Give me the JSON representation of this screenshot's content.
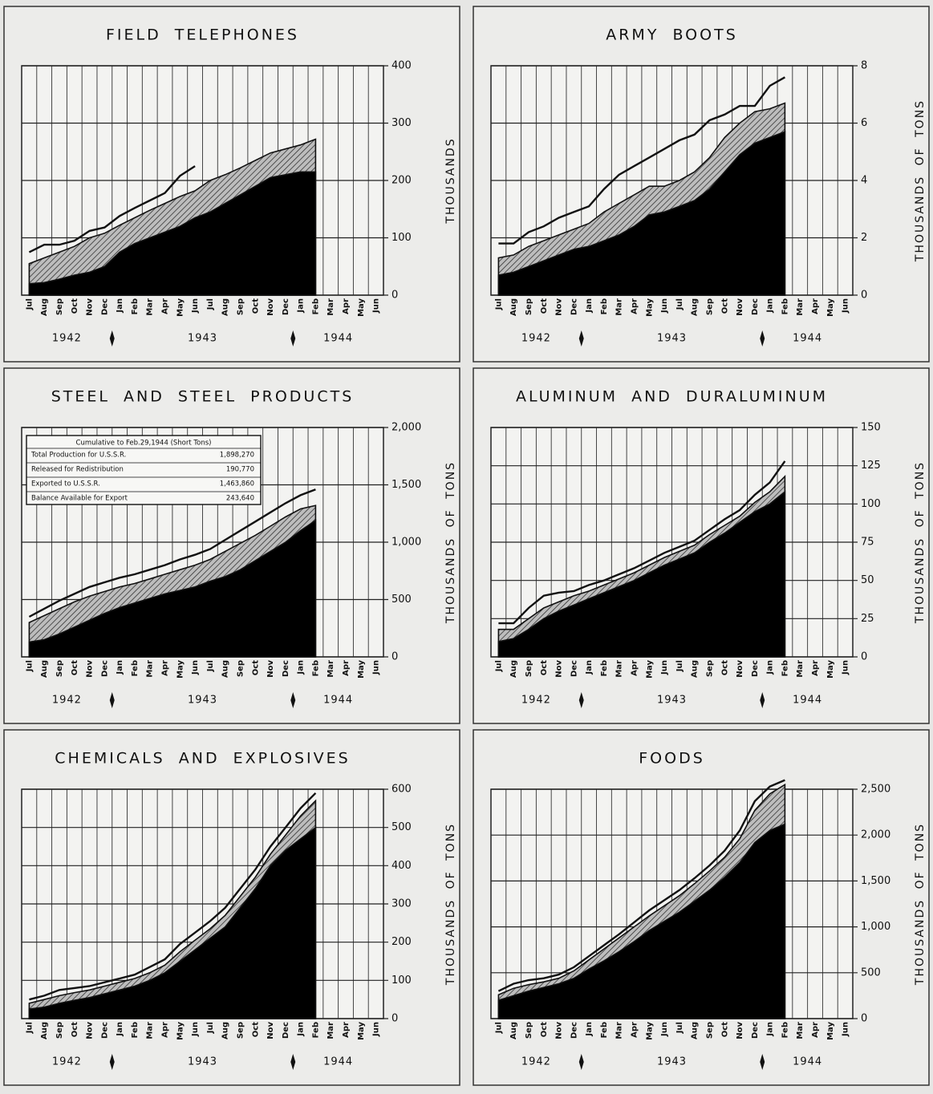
{
  "chart_data": [
    {
      "type": "line",
      "title": "FIELD TELEPHONES",
      "y_label": "THOUSANDS",
      "categories": [
        "Jul",
        "Aug",
        "Sep",
        "Oct",
        "Nov",
        "Dec",
        "Jan",
        "Feb",
        "Mar",
        "Apr",
        "May",
        "Jun",
        "Jul",
        "Aug",
        "Sep",
        "Oct",
        "Nov",
        "Dec",
        "Jan",
        "Feb",
        "Mar",
        "Apr",
        "May",
        "Jun"
      ],
      "years": [
        "1942",
        "1943",
        "1944"
      ],
      "ylim": [
        0,
        400
      ],
      "yticks": [
        0,
        100,
        200,
        300,
        400
      ],
      "grid": true,
      "series": [
        {
          "color": "#111111",
          "values": [
            75,
            88,
            88,
            95,
            112,
            118,
            138,
            152,
            165,
            178,
            208,
            225,
            null,
            null,
            null,
            null,
            null,
            null,
            null,
            null,
            null,
            null,
            null,
            null
          ]
        },
        {
          "color": "#9a9a9a",
          "values": [
            55,
            65,
            75,
            85,
            100,
            108,
            122,
            135,
            148,
            160,
            172,
            182,
            200,
            210,
            222,
            235,
            248,
            255,
            262,
            272,
            null,
            null,
            null,
            null
          ]
        },
        {
          "color": "#000000",
          "values": [
            20,
            22,
            28,
            35,
            40,
            50,
            75,
            90,
            100,
            110,
            120,
            135,
            145,
            160,
            175,
            190,
            205,
            210,
            215,
            215,
            null,
            null,
            null,
            null
          ]
        }
      ]
    },
    {
      "type": "line",
      "title": "ARMY BOOTS",
      "y_label": "THOUSANDS OF TONS",
      "categories": [
        "Jul",
        "Aug",
        "Sep",
        "Oct",
        "Nov",
        "Dec",
        "Jan",
        "Feb",
        "Mar",
        "Apr",
        "May",
        "Jun",
        "Jul",
        "Aug",
        "Sep",
        "Oct",
        "Nov",
        "Dec",
        "Jan",
        "Feb",
        "Mar",
        "Apr",
        "May",
        "Jun"
      ],
      "years": [
        "1942",
        "1943",
        "1944"
      ],
      "ylim": [
        0,
        8
      ],
      "yticks": [
        0,
        2,
        4,
        6,
        8
      ],
      "grid": true,
      "series": [
        {
          "color": "#111111",
          "values": [
            1.8,
            1.8,
            2.2,
            2.4,
            2.7,
            2.9,
            3.1,
            3.7,
            4.2,
            4.5,
            4.8,
            5.1,
            5.4,
            5.6,
            6.1,
            6.3,
            6.6,
            6.6,
            7.3,
            7.6,
            null,
            null,
            null,
            null
          ]
        },
        {
          "color": "#9a9a9a",
          "values": [
            1.3,
            1.4,
            1.7,
            1.9,
            2.1,
            2.3,
            2.5,
            2.9,
            3.2,
            3.5,
            3.8,
            3.8,
            4.0,
            4.3,
            4.8,
            5.5,
            6.0,
            6.4,
            6.5,
            6.7,
            null,
            null,
            null,
            null
          ]
        },
        {
          "color": "#000000",
          "values": [
            0.7,
            0.8,
            1.0,
            1.2,
            1.4,
            1.6,
            1.7,
            1.9,
            2.1,
            2.4,
            2.8,
            2.9,
            3.1,
            3.3,
            3.7,
            4.3,
            4.9,
            5.3,
            5.5,
            5.7,
            null,
            null,
            null,
            null
          ]
        }
      ]
    },
    {
      "type": "line",
      "title": "STEEL AND STEEL PRODUCTS",
      "y_label": "THOUSANDS OF TONS",
      "categories": [
        "Jul",
        "Aug",
        "Sep",
        "Oct",
        "Nov",
        "Dec",
        "Jan",
        "Feb",
        "Mar",
        "Apr",
        "May",
        "Jun",
        "Jul",
        "Aug",
        "Sep",
        "Oct",
        "Nov",
        "Dec",
        "Jan",
        "Feb",
        "Mar",
        "Apr",
        "May",
        "Jun"
      ],
      "years": [
        "1942",
        "1943",
        "1944"
      ],
      "ylim": [
        0,
        2000
      ],
      "yticks": [
        0,
        500,
        {
          "value": 1000,
          "label": "1,000"
        },
        {
          "value": 1500,
          "label": "1,500"
        },
        {
          "value": 2000,
          "label": "2,000"
        }
      ],
      "grid": true,
      "table": {
        "title": "Cumulative to Feb.29,1944 (Short Tons)",
        "rows": [
          [
            "Total Production for U.S.S.R.",
            "1,898,270"
          ],
          [
            "Released for Redistribution",
            "190,770"
          ],
          [
            "Exported to U.S.S.R.",
            "1,463,860"
          ],
          [
            "Balance Available for Export",
            "243,640"
          ]
        ]
      },
      "series": [
        {
          "color": "#111111",
          "values": [
            350,
            420,
            490,
            550,
            610,
            650,
            690,
            720,
            760,
            800,
            850,
            890,
            940,
            1020,
            1100,
            1180,
            1260,
            1340,
            1410,
            1460,
            null,
            null,
            null,
            null
          ]
        },
        {
          "color": "#9a9a9a",
          "values": [
            300,
            360,
            420,
            480,
            530,
            570,
            610,
            640,
            680,
            720,
            760,
            800,
            850,
            920,
            990,
            1060,
            1140,
            1220,
            1290,
            1320,
            null,
            null,
            null,
            null
          ]
        },
        {
          "color": "#000000",
          "values": [
            130,
            150,
            200,
            260,
            320,
            380,
            430,
            470,
            510,
            550,
            580,
            610,
            660,
            700,
            760,
            840,
            920,
            1000,
            1100,
            1190,
            null,
            null,
            null,
            null
          ]
        }
      ]
    },
    {
      "type": "line",
      "title": "ALUMINUM AND DURALUMINUM",
      "y_label": "THOUSANDS OF TONS",
      "categories": [
        "Jul",
        "Aug",
        "Sep",
        "Oct",
        "Nov",
        "Dec",
        "Jan",
        "Feb",
        "Mar",
        "Apr",
        "May",
        "Jun",
        "Jul",
        "Aug",
        "Sep",
        "Oct",
        "Nov",
        "Dec",
        "Jan",
        "Feb",
        "Mar",
        "Apr",
        "May",
        "Jun"
      ],
      "years": [
        "1942",
        "1943",
        "1944"
      ],
      "ylim": [
        0,
        150
      ],
      "yticks": [
        0,
        25,
        50,
        75,
        100,
        125,
        150
      ],
      "grid": true,
      "series": [
        {
          "color": "#111111",
          "values": [
            22,
            22,
            32,
            40,
            42,
            43,
            47,
            50,
            54,
            58,
            63,
            68,
            72,
            76,
            83,
            90,
            96,
            106,
            114,
            128,
            null,
            null,
            null,
            null
          ]
        },
        {
          "color": "#9a9a9a",
          "values": [
            18,
            18,
            25,
            32,
            36,
            40,
            43,
            47,
            51,
            55,
            60,
            65,
            69,
            73,
            80,
            86,
            92,
            101,
            108,
            118,
            null,
            null,
            null,
            null
          ]
        },
        {
          "color": "#000000",
          "values": [
            10,
            12,
            18,
            25,
            30,
            34,
            38,
            42,
            46,
            50,
            55,
            60,
            64,
            68,
            75,
            81,
            88,
            95,
            100,
            108,
            null,
            null,
            null,
            null
          ]
        }
      ]
    },
    {
      "type": "line",
      "title": "CHEMICALS AND EXPLOSIVES",
      "y_label": "THOUSANDS OF TONS",
      "categories": [
        "Jul",
        "Aug",
        "Sep",
        "Oct",
        "Nov",
        "Dec",
        "Jan",
        "Feb",
        "Mar",
        "Apr",
        "May",
        "Jun",
        "Jul",
        "Aug",
        "Sep",
        "Oct",
        "Nov",
        "Dec",
        "Jan",
        "Feb",
        "Mar",
        "Apr",
        "May",
        "Jun"
      ],
      "years": [
        "1942",
        "1943",
        "1944"
      ],
      "ylim": [
        0,
        600
      ],
      "yticks": [
        0,
        100,
        200,
        300,
        400,
        500,
        600
      ],
      "grid": true,
      "series": [
        {
          "color": "#111111",
          "values": [
            50,
            60,
            75,
            80,
            85,
            95,
            105,
            115,
            135,
            155,
            195,
            225,
            255,
            290,
            340,
            390,
            450,
            500,
            550,
            590,
            null,
            null,
            null,
            null
          ]
        },
        {
          "color": "#9a9a9a",
          "values": [
            40,
            50,
            60,
            68,
            75,
            85,
            95,
            105,
            120,
            140,
            175,
            205,
            235,
            270,
            320,
            370,
            430,
            480,
            530,
            570,
            null,
            null,
            null,
            null
          ]
        },
        {
          "color": "#000000",
          "values": [
            25,
            30,
            40,
            48,
            55,
            65,
            75,
            85,
            100,
            120,
            150,
            180,
            210,
            240,
            290,
            340,
            400,
            440,
            470,
            500,
            null,
            null,
            null,
            null
          ]
        }
      ]
    },
    {
      "type": "line",
      "title": "FOODS",
      "y_label": "THOUSANDS OF TONS",
      "categories": [
        "Jul",
        "Aug",
        "Sep",
        "Oct",
        "Nov",
        "Dec",
        "Jan",
        "Feb",
        "Mar",
        "Apr",
        "May",
        "Jun",
        "Jul",
        "Aug",
        "Sep",
        "Oct",
        "Nov",
        "Dec",
        "Jan",
        "Feb",
        "Mar",
        "Apr",
        "May",
        "Jun"
      ],
      "years": [
        "1942",
        "1943",
        "1944"
      ],
      "ylim": [
        0,
        2500
      ],
      "yticks": [
        0,
        500,
        {
          "value": 1000,
          "label": "1,000"
        },
        {
          "value": 1500,
          "label": "1,500"
        },
        {
          "value": 2000,
          "label": "2,000"
        },
        {
          "value": 2500,
          "label": "2,500"
        }
      ],
      "grid": true,
      "series": [
        {
          "color": "#111111",
          "values": [
            300,
            380,
            420,
            440,
            480,
            560,
            680,
            800,
            920,
            1050,
            1180,
            1290,
            1400,
            1530,
            1670,
            1830,
            2050,
            2370,
            2530,
            2600,
            null,
            null,
            null,
            null
          ]
        },
        {
          "color": "#9a9a9a",
          "values": [
            260,
            330,
            370,
            400,
            440,
            520,
            640,
            760,
            880,
            1000,
            1120,
            1230,
            1340,
            1470,
            1610,
            1760,
            1960,
            2270,
            2450,
            2550,
            null,
            null,
            null,
            null
          ]
        },
        {
          "color": "#000000",
          "values": [
            200,
            250,
            300,
            340,
            380,
            440,
            540,
            630,
            730,
            840,
            960,
            1060,
            1160,
            1280,
            1400,
            1540,
            1700,
            1920,
            2050,
            2120,
            null,
            null,
            null,
            null
          ]
        }
      ]
    }
  ]
}
